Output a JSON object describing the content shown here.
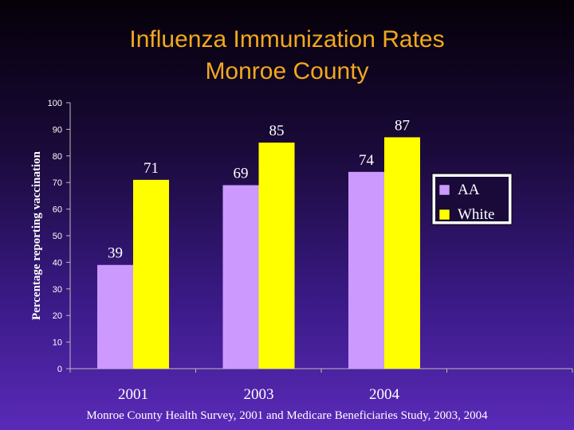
{
  "title": "Influenza Immunization Rates",
  "subtitle": "Monroe County",
  "source": "Monroe County Health Survey, 2001 and Medicare Beneficiaries Study, 2003, 2004",
  "chart_data": {
    "type": "bar",
    "title": "Influenza Immunization Rates",
    "subtitle": "Monroe County",
    "xlabel": "",
    "ylabel": "Percentage reporting vaccination",
    "ylim": [
      0,
      100
    ],
    "yticks": [
      0,
      10,
      20,
      30,
      40,
      50,
      60,
      70,
      80,
      90,
      100
    ],
    "categories": [
      "2001",
      "2003",
      "2004"
    ],
    "series": [
      {
        "name": "AA",
        "values": [
          39,
          69,
          74
        ],
        "color": "#cc99ff"
      },
      {
        "name": "White",
        "values": [
          71,
          85,
          87
        ],
        "color": "#ffff00"
      }
    ],
    "legend": "right",
    "grid": false
  },
  "colors": {
    "title": "#f2a81e",
    "axis": "#bbbbbb",
    "label": "#ffffff"
  }
}
